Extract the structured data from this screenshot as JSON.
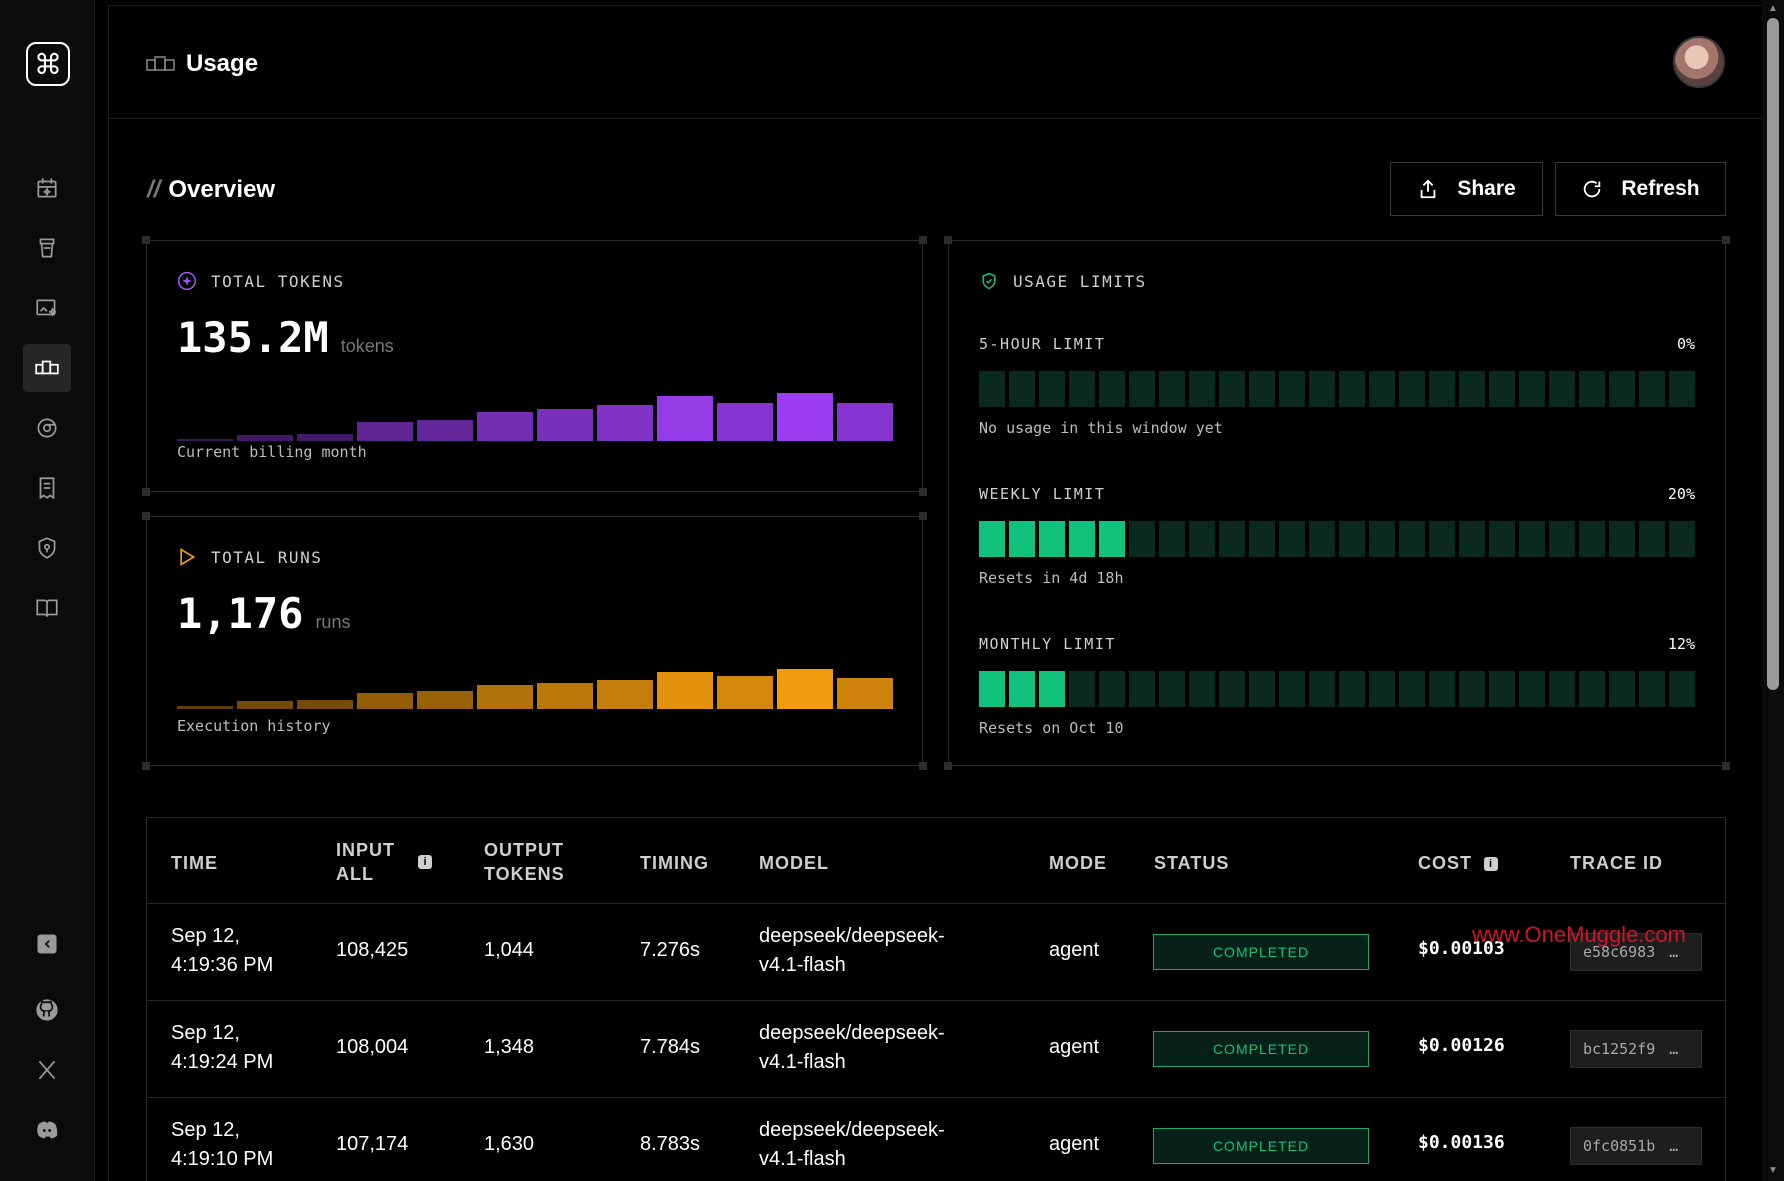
{
  "app": {
    "logo_glyph": "⌘",
    "page_title": "Usage"
  },
  "overview": {
    "title": "Overview",
    "share_label": "Share",
    "refresh_label": "Refresh"
  },
  "tokens_card": {
    "label": "TOTAL TOKENS",
    "value": "135.2M",
    "unit": "tokens",
    "subtitle": "Current billing month",
    "bar_color": "#9b3df0",
    "bar_levels": [
      0.05,
      0.12,
      0.14,
      0.4,
      0.44,
      0.6,
      0.66,
      0.74,
      0.94,
      0.8,
      1.0,
      0.8
    ]
  },
  "runs_card": {
    "label": "TOTAL RUNS",
    "value": "1,176",
    "unit": "runs",
    "subtitle": "Execution history",
    "bar_color": "#f09a0c",
    "bar_levels": [
      0.08,
      0.2,
      0.22,
      0.4,
      0.44,
      0.6,
      0.66,
      0.72,
      0.92,
      0.82,
      1.0,
      0.78
    ]
  },
  "limits_card": {
    "label": "USAGE LIMITS",
    "limits": [
      {
        "name": "5-HOUR LIMIT",
        "percent": "0%",
        "filled_segments": 0,
        "note": "No usage in this window yet"
      },
      {
        "name": "WEEKLY LIMIT",
        "percent": "20%",
        "filled_segments": 5,
        "note": "Resets in 4d 18h"
      },
      {
        "name": "MONTHLY LIMIT",
        "percent": "12%",
        "filled_segments": 3,
        "note": "Resets on Oct 10"
      }
    ],
    "total_segments": 24,
    "accent_color": "#10c27d"
  },
  "table": {
    "headers": {
      "time": "TIME",
      "input_all": "INPUT ALL",
      "output_tokens": "OUTPUT TOKENS",
      "timing": "TIMING",
      "model": "MODEL",
      "mode": "MODE",
      "status": "STATUS",
      "cost": "COST",
      "trace_id": "TRACE ID"
    },
    "rows": [
      {
        "time": "Sep 12, 4:19:36 PM",
        "input": "108,425",
        "output": "1,044",
        "timing": "7.276s",
        "model": "deepseek/deepseek-v4.1-flash",
        "mode": "agent",
        "status": "COMPLETED",
        "cost": "$0.00103",
        "trace": "e58c6983"
      },
      {
        "time": "Sep 12, 4:19:24 PM",
        "input": "108,004",
        "output": "1,348",
        "timing": "7.784s",
        "model": "deepseek/deepseek-v4.1-flash",
        "mode": "agent",
        "status": "COMPLETED",
        "cost": "$0.00126",
        "trace": "bc1252f9"
      },
      {
        "time": "Sep 12, 4:19:10 PM",
        "input": "107,174",
        "output": "1,630",
        "timing": "8.783s",
        "model": "deepseek/deepseek-v4.1-flash",
        "mode": "agent",
        "status": "COMPLETED",
        "cost": "$0.00136",
        "trace": "0fc0851b"
      }
    ]
  },
  "watermark": "www.OneMuggle.com"
}
